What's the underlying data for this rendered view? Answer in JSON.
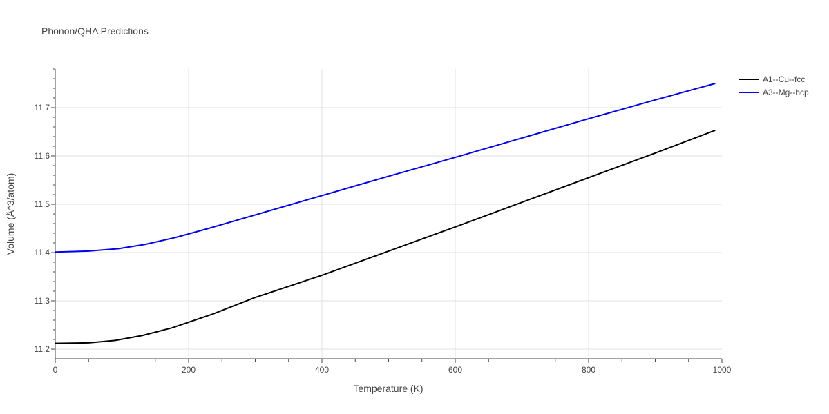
{
  "chart_data": {
    "type": "line",
    "title": "Phonon/QHA Predictions",
    "xlabel": "Temperature (K)",
    "ylabel": "Volume (Å^3/atom)",
    "xlim": [
      0,
      1000
    ],
    "ylim": [
      11.18,
      11.78
    ],
    "x_ticks": [
      0,
      200,
      400,
      600,
      800,
      1000
    ],
    "y_ticks": [
      11.2,
      11.3,
      11.4,
      11.5,
      11.6,
      11.7
    ],
    "grid": true,
    "legend_position": "top-right",
    "series": [
      {
        "name": "A1--Cu--fcc",
        "color": "#000000",
        "x": [
          0,
          50,
          90,
          130,
          175,
          235,
          300,
          400,
          500,
          600,
          700,
          800,
          900,
          990
        ],
        "y": [
          11.212,
          11.213,
          11.218,
          11.228,
          11.244,
          11.272,
          11.307,
          11.353,
          11.403,
          11.453,
          11.504,
          11.555,
          11.606,
          11.653
        ]
      },
      {
        "name": "A3--Mg--hcp",
        "color": "#0000ee",
        "x": [
          0,
          50,
          95,
          135,
          180,
          230,
          300,
          400,
          500,
          600,
          700,
          800,
          900,
          990
        ],
        "y": [
          11.401,
          11.403,
          11.408,
          11.417,
          11.431,
          11.45,
          11.478,
          11.518,
          11.558,
          11.597,
          11.637,
          11.677,
          11.716,
          11.75
        ]
      }
    ]
  }
}
